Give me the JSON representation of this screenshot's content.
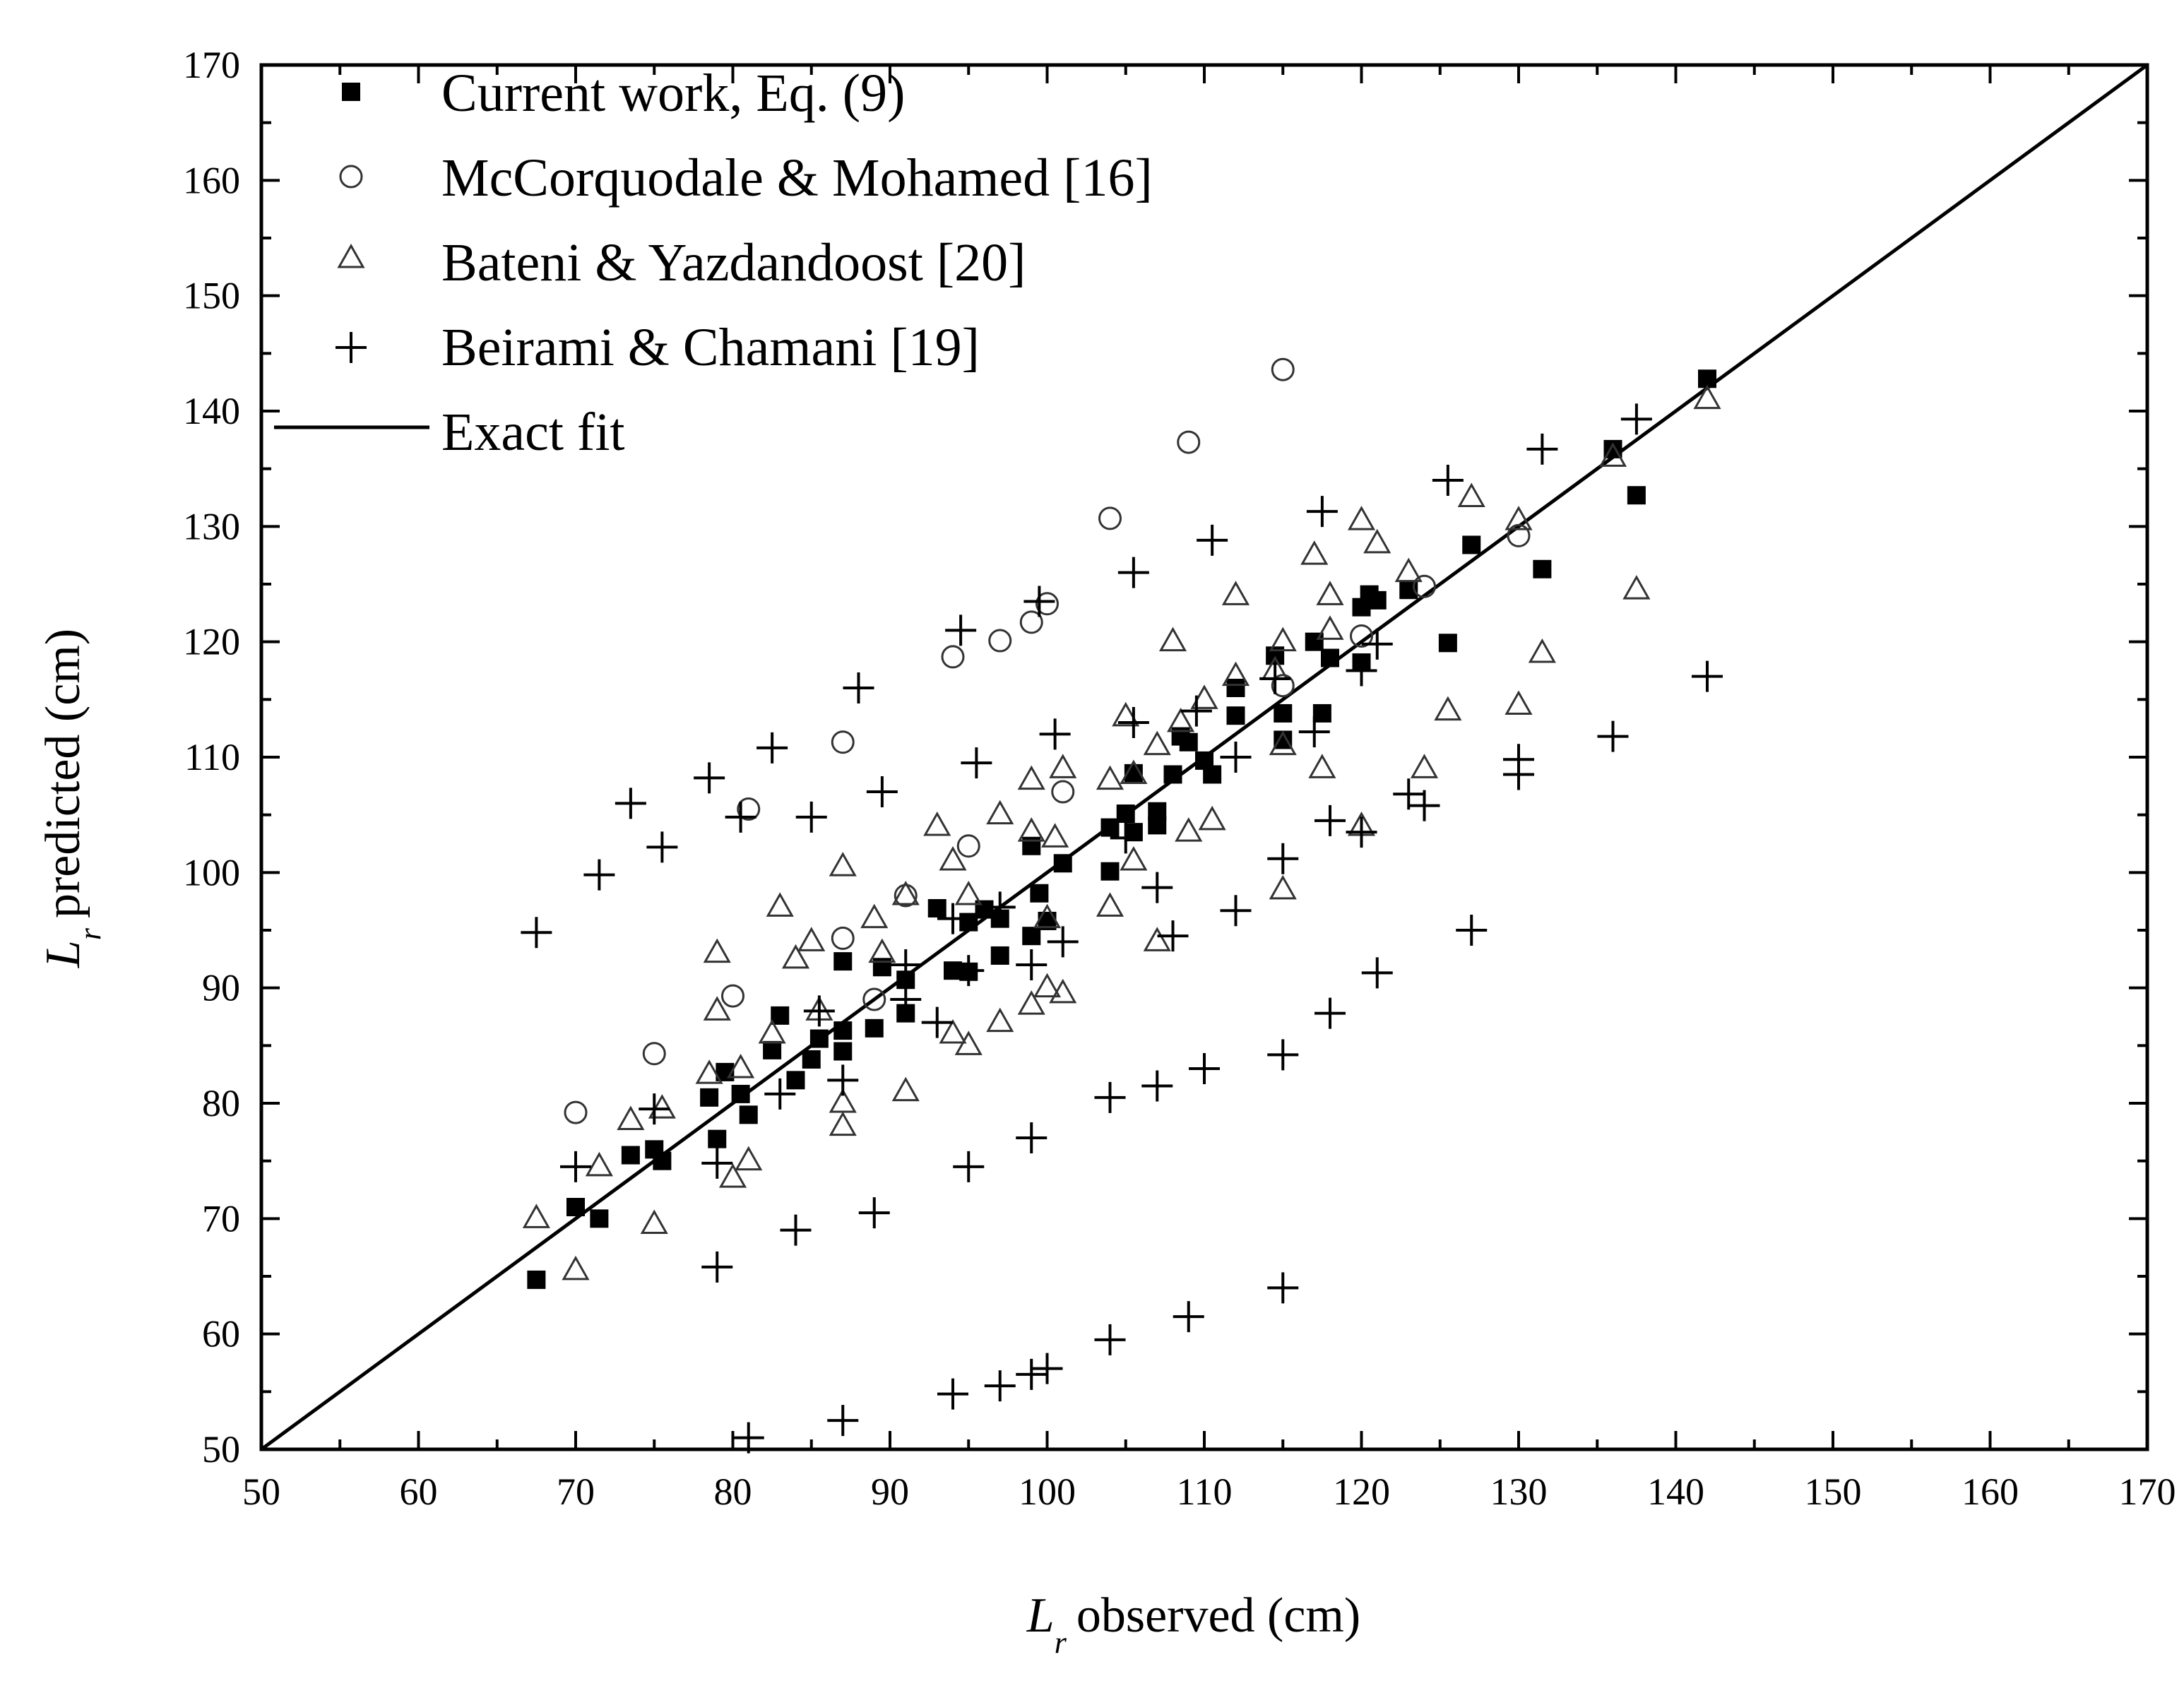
{
  "chart_data": {
    "type": "scatter",
    "title": "",
    "xlabel": {
      "var": "L",
      "sub": "r",
      "text": "observed (cm)"
    },
    "ylabel": {
      "var": "L",
      "sub": "r",
      "text": "predicted (cm)"
    },
    "xlim": [
      50,
      170
    ],
    "ylim": [
      50,
      170
    ],
    "xticks": [
      50,
      60,
      70,
      80,
      90,
      100,
      110,
      120,
      130,
      140,
      150,
      160,
      170
    ],
    "yticks": [
      50,
      60,
      70,
      80,
      90,
      100,
      110,
      120,
      130,
      140,
      150,
      160,
      170
    ],
    "legend_position": "top-left",
    "grid": false,
    "series": [
      {
        "name": "Current work, Eq. (9)",
        "marker": "square",
        "points": [
          [
            67.5,
            64.7
          ],
          [
            70,
            71
          ],
          [
            71.5,
            70
          ],
          [
            73.5,
            75.5
          ],
          [
            75,
            76
          ],
          [
            75.5,
            75
          ],
          [
            78.5,
            80.5
          ],
          [
            79,
            76.9
          ],
          [
            79.5,
            82.7
          ],
          [
            80.5,
            80.8
          ],
          [
            81,
            79
          ],
          [
            83,
            87.6
          ],
          [
            82.5,
            84.6
          ],
          [
            84,
            82
          ],
          [
            85,
            83.8
          ],
          [
            85.5,
            85.6
          ],
          [
            87,
            86.3
          ],
          [
            87,
            84.5
          ],
          [
            87,
            92.3
          ],
          [
            89,
            86.5
          ],
          [
            89.5,
            91.8
          ],
          [
            91,
            87.8
          ],
          [
            91,
            90.7
          ],
          [
            93,
            96.9
          ],
          [
            94,
            91.5
          ],
          [
            95,
            91.4
          ],
          [
            95,
            95.7
          ],
          [
            96,
            96.8
          ],
          [
            97,
            96
          ],
          [
            97,
            92.8
          ],
          [
            99,
            94.5
          ],
          [
            99,
            102.3
          ],
          [
            99.5,
            98.2
          ],
          [
            100,
            95.8
          ],
          [
            101,
            100.8
          ],
          [
            104,
            100.1
          ],
          [
            104,
            103.9
          ],
          [
            105,
            105.1
          ],
          [
            105.5,
            103.5
          ],
          [
            105.5,
            108.6
          ],
          [
            107,
            104.1
          ],
          [
            107,
            105.3
          ],
          [
            108,
            108.5
          ],
          [
            108.5,
            111.8
          ],
          [
            109,
            111.3
          ],
          [
            110,
            109.7
          ],
          [
            110.5,
            108.5
          ],
          [
            112,
            113.6
          ],
          [
            112,
            116
          ],
          [
            114.5,
            118.8
          ],
          [
            115,
            111.5
          ],
          [
            115,
            113.8
          ],
          [
            117,
            120
          ],
          [
            117.5,
            113.8
          ],
          [
            118,
            118.6
          ],
          [
            120,
            118.2
          ],
          [
            120,
            123
          ],
          [
            120.5,
            124.1
          ],
          [
            121,
            123.6
          ],
          [
            123,
            124.5
          ],
          [
            125.5,
            119.9
          ],
          [
            127,
            128.4
          ],
          [
            131.5,
            126.3
          ],
          [
            136,
            136.7
          ],
          [
            137.5,
            132.7
          ],
          [
            142,
            142.8
          ]
        ]
      },
      {
        "name": "McCorquodale & Mohamed [16]",
        "marker": "circle",
        "points": [
          [
            70,
            79.2
          ],
          [
            75,
            84.3
          ],
          [
            80,
            89.3
          ],
          [
            81,
            105.5
          ],
          [
            87,
            94.3
          ],
          [
            87,
            111.3
          ],
          [
            89,
            89
          ],
          [
            91,
            98
          ],
          [
            94,
            118.7
          ],
          [
            95,
            102.3
          ],
          [
            97,
            120.1
          ],
          [
            99,
            121.7
          ],
          [
            100,
            123.3
          ],
          [
            101,
            107
          ],
          [
            104,
            130.7
          ],
          [
            109,
            137.3
          ],
          [
            115,
            143.6
          ],
          [
            115,
            116.2
          ],
          [
            120,
            120.5
          ],
          [
            124,
            124.8
          ],
          [
            130,
            129.2
          ]
        ]
      },
      {
        "name": "Bateni & Yazdandoost [20]",
        "marker": "triangle",
        "points": [
          [
            67.5,
            70
          ],
          [
            70,
            65.5
          ],
          [
            71.5,
            74.5
          ],
          [
            73.5,
            78.5
          ],
          [
            75,
            69.5
          ],
          [
            75.5,
            79.5
          ],
          [
            78.5,
            82.5
          ],
          [
            79,
            88
          ],
          [
            79,
            93
          ],
          [
            80,
            73.5
          ],
          [
            81,
            75
          ],
          [
            80.5,
            83
          ],
          [
            82.5,
            86
          ],
          [
            83,
            97
          ],
          [
            84,
            92.5
          ],
          [
            85,
            94
          ],
          [
            85.5,
            88
          ],
          [
            87,
            78
          ],
          [
            87,
            80
          ],
          [
            87,
            100.5
          ],
          [
            89,
            96
          ],
          [
            89.5,
            93
          ],
          [
            91,
            81
          ],
          [
            91,
            98
          ],
          [
            93,
            104
          ],
          [
            94,
            86
          ],
          [
            94,
            101
          ],
          [
            95,
            85
          ],
          [
            95,
            98
          ],
          [
            97,
            87
          ],
          [
            97,
            105
          ],
          [
            99,
            88.5
          ],
          [
            99,
            103.5
          ],
          [
            99,
            108
          ],
          [
            100,
            90
          ],
          [
            100,
            96
          ],
          [
            100.5,
            103
          ],
          [
            101,
            89.5
          ],
          [
            101,
            109
          ],
          [
            104,
            97
          ],
          [
            104,
            108
          ],
          [
            105,
            113.5
          ],
          [
            105.5,
            101
          ],
          [
            105.5,
            108.5
          ],
          [
            107,
            94
          ],
          [
            107,
            111
          ],
          [
            108,
            120
          ],
          [
            108.5,
            113
          ],
          [
            109,
            103.5
          ],
          [
            110,
            115
          ],
          [
            110.5,
            104.5
          ],
          [
            112,
            117
          ],
          [
            112,
            124
          ],
          [
            114.5,
            117.5
          ],
          [
            115,
            98.5
          ],
          [
            115,
            111
          ],
          [
            115,
            120
          ],
          [
            117,
            127.5
          ],
          [
            117.5,
            109
          ],
          [
            118,
            121
          ],
          [
            118,
            124
          ],
          [
            120,
            104
          ],
          [
            120,
            130.5
          ],
          [
            121,
            128.5
          ],
          [
            123,
            126
          ],
          [
            124,
            109
          ],
          [
            125.5,
            114
          ],
          [
            127,
            132.5
          ],
          [
            130,
            114.5
          ],
          [
            130,
            130.5
          ],
          [
            131.5,
            119
          ],
          [
            136,
            136
          ],
          [
            137.5,
            124.5
          ],
          [
            142,
            141
          ]
        ]
      },
      {
        "name": "Beirami & Chamani [19]",
        "marker": "plus",
        "points": [
          [
            67.5,
            94.8
          ],
          [
            70,
            74.5
          ],
          [
            71.5,
            99.8
          ],
          [
            73.5,
            106
          ],
          [
            75,
            79.5
          ],
          [
            75.5,
            102.2
          ],
          [
            78.5,
            108.2
          ],
          [
            79,
            65.8
          ],
          [
            79,
            74.8
          ],
          [
            80.5,
            104.8
          ],
          [
            81,
            51
          ],
          [
            82.5,
            110.8
          ],
          [
            83,
            80.8
          ],
          [
            84,
            69
          ],
          [
            85,
            104.8
          ],
          [
            85.5,
            88
          ],
          [
            87,
            52.5
          ],
          [
            87,
            82
          ],
          [
            88,
            116
          ],
          [
            89,
            70.5
          ],
          [
            89.5,
            107
          ],
          [
            91,
            89
          ],
          [
            91,
            92
          ],
          [
            93,
            87
          ],
          [
            94,
            54.8
          ],
          [
            94,
            96
          ],
          [
            94.5,
            121
          ],
          [
            95,
            74.5
          ],
          [
            95,
            91.5
          ],
          [
            95.5,
            109.5
          ],
          [
            97,
            55.5
          ],
          [
            97,
            97
          ],
          [
            99,
            56.5
          ],
          [
            99,
            77
          ],
          [
            99,
            92
          ],
          [
            99.5,
            123.5
          ],
          [
            100,
            57
          ],
          [
            100.5,
            112
          ],
          [
            101,
            94
          ],
          [
            104,
            59.5
          ],
          [
            104,
            80.5
          ],
          [
            105,
            103
          ],
          [
            105.5,
            113
          ],
          [
            105.5,
            126
          ],
          [
            107,
            81.5
          ],
          [
            107,
            98.7
          ],
          [
            108,
            94.5
          ],
          [
            109,
            61.5
          ],
          [
            109.5,
            114
          ],
          [
            110,
            83
          ],
          [
            110.5,
            128.8
          ],
          [
            112,
            96.7
          ],
          [
            112,
            110
          ],
          [
            114.5,
            116.8
          ],
          [
            115,
            64
          ],
          [
            115,
            84.2
          ],
          [
            115,
            101.2
          ],
          [
            117,
            112.2
          ],
          [
            117.5,
            131.3
          ],
          [
            118,
            87.8
          ],
          [
            118,
            104.5
          ],
          [
            120,
            103.5
          ],
          [
            120,
            117.5
          ],
          [
            121,
            91.3
          ],
          [
            121,
            119.8
          ],
          [
            123,
            106.8
          ],
          [
            124,
            105.8
          ],
          [
            125.5,
            134
          ],
          [
            127,
            95
          ],
          [
            130,
            108.5
          ],
          [
            130,
            109.8
          ],
          [
            131.5,
            136.7
          ],
          [
            136,
            111.8
          ],
          [
            137.5,
            139.3
          ],
          [
            142,
            117
          ]
        ]
      },
      {
        "name": "Exact fit",
        "marker": "line",
        "points": [
          [
            50,
            50
          ],
          [
            170,
            170
          ]
        ]
      }
    ]
  }
}
